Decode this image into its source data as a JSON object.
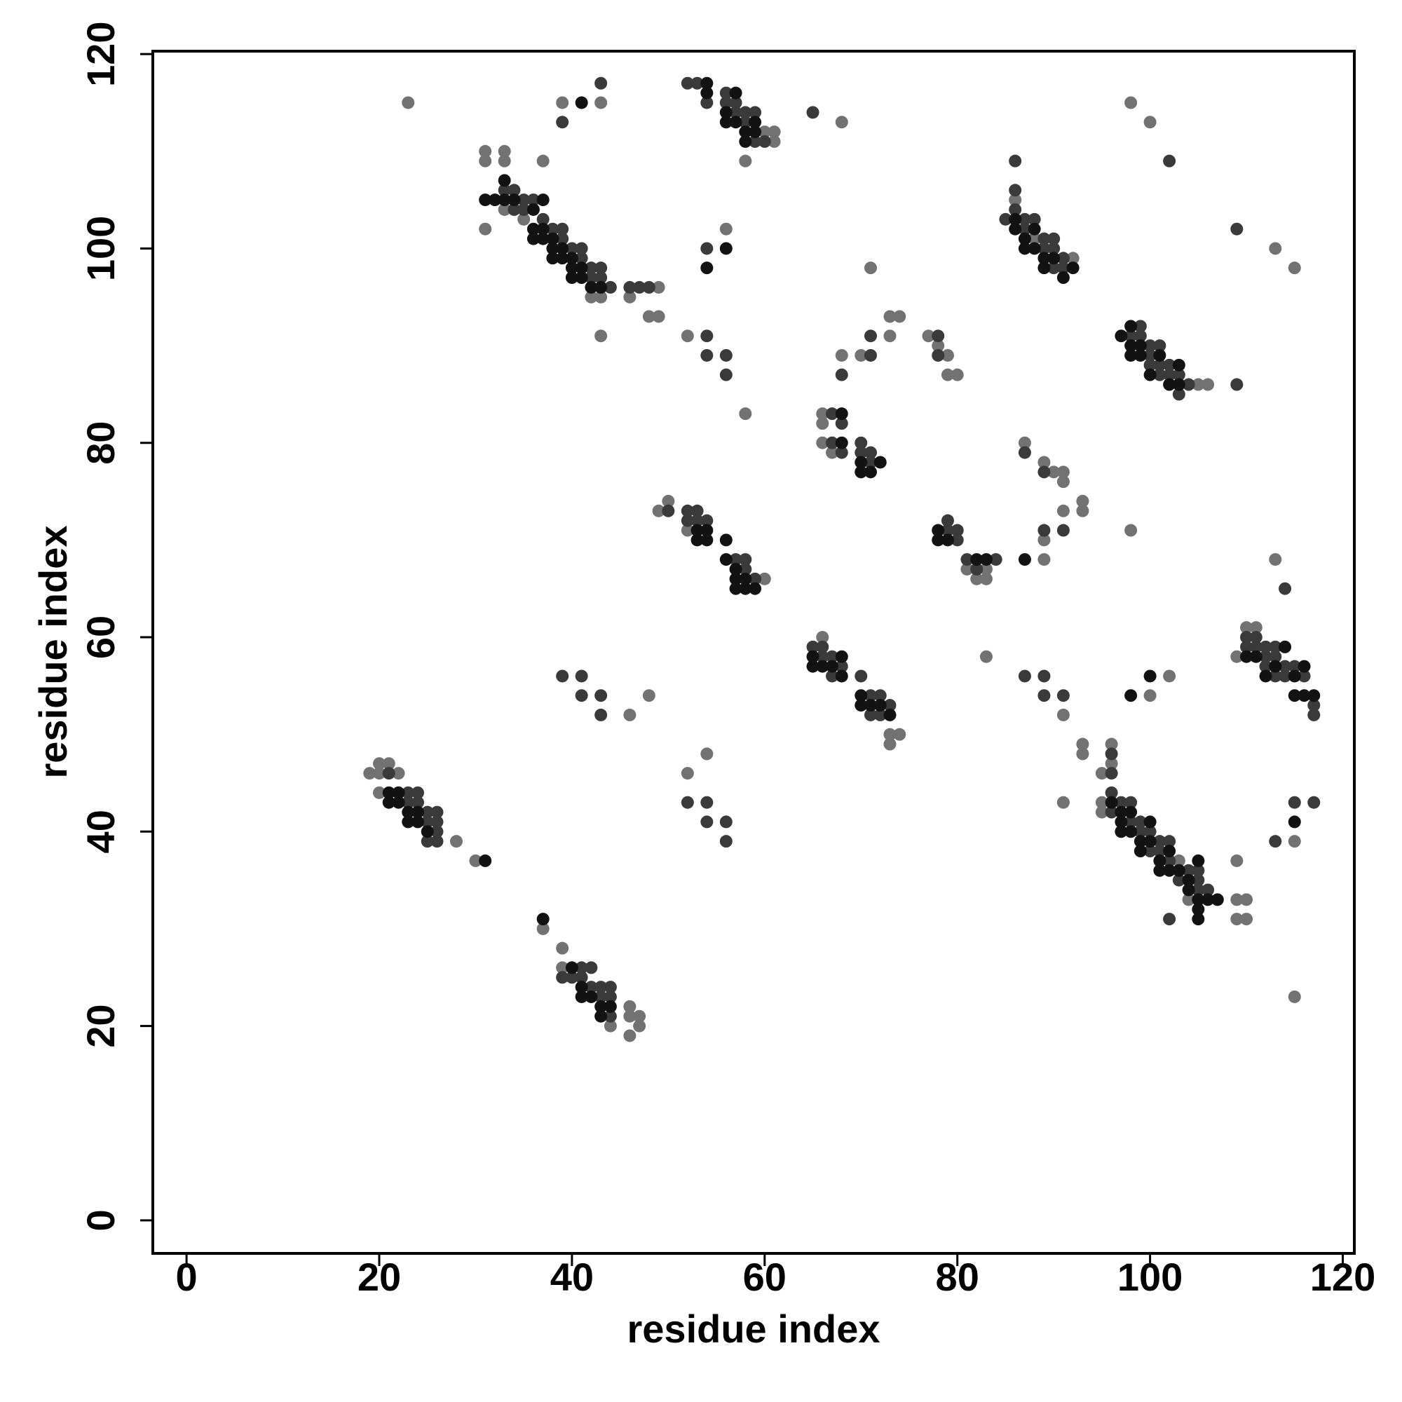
{
  "chart_data": {
    "type": "scatter",
    "xlabel": "residue index",
    "ylabel": "residue index",
    "xlim": [
      -3.5,
      121.2
    ],
    "ylim": [
      -3.4,
      120.3
    ],
    "xticks": [
      0,
      20,
      40,
      60,
      80,
      100,
      120
    ],
    "yticks": [
      0,
      20,
      40,
      60,
      80,
      100,
      120
    ],
    "series": [
      {
        "color": "#727272",
        "x": [
          23,
          39,
          20,
          21,
          19,
          20,
          22,
          20,
          28,
          30,
          37,
          39,
          46,
          46,
          47,
          47,
          44,
          46,
          39,
          31,
          31,
          33,
          33,
          37,
          31,
          33,
          35,
          42,
          43,
          46,
          49,
          48,
          49,
          43,
          43,
          60,
          61,
          61,
          58,
          68,
          56,
          52,
          58,
          49,
          50,
          52,
          60,
          66,
          73,
          74,
          73,
          66,
          66,
          66,
          67,
          68,
          70,
          73,
          74,
          73,
          71,
          77,
          78,
          79,
          80,
          79,
          81,
          82,
          83,
          83,
          83,
          48,
          46,
          54,
          52,
          87,
          89,
          90,
          91,
          91,
          91,
          93,
          93,
          89,
          89,
          98,
          91,
          93,
          93,
          91,
          95,
          96,
          96,
          95,
          95,
          100,
          102,
          109,
          109,
          110,
          109,
          110,
          103,
          104,
          98,
          100,
          113,
          115,
          113,
          115,
          115,
          110,
          111,
          109,
          106,
          105,
          88,
          86,
          92
        ],
        "values": [
          115,
          115,
          47,
          47,
          46,
          46,
          46,
          44,
          39,
          37,
          30,
          28,
          22,
          21,
          21,
          20,
          20,
          19,
          26,
          110,
          109,
          110,
          109,
          109,
          102,
          104,
          103,
          95,
          95,
          95,
          96,
          93,
          93,
          91,
          115,
          112,
          112,
          111,
          109,
          113,
          102,
          91,
          83,
          73,
          74,
          71,
          66,
          60,
          50,
          50,
          49,
          83,
          82,
          80,
          79,
          89,
          89,
          93,
          93,
          91,
          98,
          91,
          90,
          89,
          87,
          87,
          67,
          66,
          66,
          67,
          58,
          54,
          52,
          48,
          46,
          80,
          78,
          77,
          77,
          76,
          73,
          74,
          73,
          70,
          68,
          71,
          52,
          49,
          48,
          43,
          46,
          49,
          47,
          43,
          42,
          54,
          56,
          37,
          33,
          33,
          31,
          31,
          37,
          33,
          115,
          113,
          100,
          98,
          68,
          39,
          23,
          61,
          61,
          58,
          86,
          86,
          101,
          105,
          99
        ]
      },
      {
        "color": "#3a3a3a",
        "x": [
          21,
          23,
          23,
          24,
          24,
          25,
          25,
          25,
          26,
          26,
          26,
          26,
          39,
          40,
          41,
          41,
          42,
          42,
          43,
          43,
          44,
          44,
          44,
          47,
          48,
          46,
          44,
          33,
          34,
          34,
          35,
          35,
          36,
          37,
          38,
          39,
          39,
          40,
          41,
          41,
          42,
          42,
          43,
          43,
          39,
          43,
          52,
          53,
          54,
          56,
          56,
          57,
          57,
          58,
          58,
          59,
          59,
          60,
          65,
          54,
          54,
          54,
          56,
          56,
          50,
          52,
          52,
          53,
          53,
          54,
          57,
          58,
          58,
          59,
          65,
          66,
          66,
          67,
          67,
          68,
          70,
          71,
          71,
          72,
          72,
          73,
          67,
          67,
          68,
          68,
          70,
          70,
          71,
          71,
          68,
          71,
          71,
          78,
          78,
          80,
          79,
          79,
          80,
          81,
          82,
          84,
          86,
          85,
          86,
          86,
          87,
          87,
          88,
          89,
          89,
          90,
          90,
          90,
          91,
          91,
          98,
          99,
          99,
          100,
          100,
          100,
          101,
          101,
          101,
          102,
          102,
          103,
          103,
          104,
          109,
          102,
          109,
          87,
          89,
          91,
          89,
          87,
          89,
          89,
          91,
          96,
          96,
          96,
          96,
          97,
          98,
          98,
          99,
          99,
          100,
          100,
          101,
          101,
          102,
          102,
          103,
          104,
          105,
          105,
          105,
          106,
          102,
          110,
          110,
          111,
          111,
          112,
          112,
          112,
          113,
          113,
          113,
          114,
          114,
          115,
          116,
          117,
          117,
          114,
          113,
          115,
          117,
          41,
          39,
          41,
          43,
          43,
          52,
          54,
          54,
          56,
          56
        ],
        "values": [
          46,
          44,
          43,
          44,
          43,
          42,
          41,
          39,
          42,
          41,
          40,
          39,
          25,
          25,
          26,
          25,
          26,
          24,
          24,
          23,
          24,
          23,
          21,
          96,
          96,
          96,
          96,
          106,
          106,
          104,
          105,
          104,
          105,
          103,
          102,
          102,
          101,
          100,
          100,
          99,
          98,
          97,
          98,
          97,
          113,
          117,
          117,
          117,
          115,
          116,
          115,
          115,
          114,
          114,
          113,
          114,
          111,
          111,
          114,
          100,
          91,
          89,
          89,
          87,
          73,
          73,
          72,
          73,
          72,
          72,
          68,
          68,
          67,
          66,
          59,
          59,
          58,
          58,
          56,
          57,
          56,
          54,
          52,
          54,
          52,
          53,
          83,
          80,
          82,
          79,
          80,
          79,
          79,
          78,
          87,
          89,
          91,
          91,
          89,
          70,
          72,
          71,
          71,
          68,
          67,
          68,
          109,
          103,
          106,
          104,
          103,
          102,
          103,
          101,
          100,
          101,
          100,
          98,
          99,
          98,
          91,
          92,
          91,
          90,
          89,
          88,
          90,
          88,
          87,
          88,
          87,
          87,
          85,
          86,
          86,
          109,
          102,
          79,
          77,
          71,
          71,
          56,
          56,
          54,
          54,
          48,
          46,
          44,
          42,
          43,
          43,
          41,
          41,
          40,
          40,
          38,
          39,
          38,
          39,
          37,
          35,
          36,
          36,
          35,
          34,
          34,
          31,
          60,
          59,
          60,
          59,
          59,
          58,
          57,
          59,
          58,
          56,
          57,
          56,
          57,
          56,
          53,
          52,
          65,
          39,
          43,
          43,
          56,
          56,
          54,
          54,
          52,
          43,
          43,
          41,
          41,
          39
        ]
      },
      {
        "color": "#121212",
        "x": [
          21,
          21,
          22,
          22,
          23,
          23,
          24,
          24,
          25,
          31,
          37,
          40,
          41,
          41,
          42,
          43,
          43,
          44,
          31,
          32,
          33,
          33,
          34,
          36,
          36,
          36,
          37,
          37,
          37,
          38,
          38,
          38,
          39,
          39,
          40,
          40,
          40,
          41,
          41,
          42,
          43,
          41,
          54,
          54,
          56,
          56,
          57,
          57,
          58,
          58,
          59,
          59,
          54,
          56,
          53,
          54,
          54,
          53,
          56,
          56,
          57,
          57,
          57,
          58,
          58,
          59,
          65,
          65,
          66,
          67,
          68,
          68,
          70,
          70,
          71,
          72,
          73,
          68,
          68,
          70,
          70,
          71,
          72,
          78,
          79,
          78,
          82,
          83,
          86,
          86,
          87,
          87,
          88,
          88,
          89,
          89,
          90,
          91,
          92,
          97,
          98,
          98,
          98,
          99,
          99,
          100,
          101,
          102,
          103,
          103,
          87,
          98,
          100,
          96,
          97,
          97,
          97,
          98,
          98,
          99,
          99,
          100,
          100,
          101,
          101,
          102,
          102,
          103,
          104,
          104,
          105,
          105,
          105,
          105,
          106,
          107,
          110,
          111,
          112,
          113,
          114,
          115,
          115,
          116,
          116,
          117,
          115
        ],
        "values": [
          44,
          43,
          44,
          43,
          42,
          41,
          42,
          41,
          40,
          37,
          31,
          26,
          24,
          23,
          23,
          22,
          21,
          22,
          105,
          105,
          107,
          105,
          105,
          104,
          102,
          101,
          105,
          102,
          101,
          101,
          100,
          99,
          100,
          99,
          99,
          98,
          97,
          98,
          97,
          96,
          96,
          115,
          117,
          116,
          114,
          113,
          116,
          113,
          112,
          111,
          113,
          112,
          98,
          100,
          71,
          71,
          70,
          70,
          70,
          68,
          67,
          66,
          65,
          66,
          65,
          65,
          58,
          57,
          57,
          57,
          58,
          56,
          54,
          53,
          53,
          53,
          52,
          83,
          80,
          78,
          77,
          77,
          78,
          71,
          70,
          70,
          68,
          68,
          103,
          102,
          101,
          100,
          102,
          100,
          99,
          98,
          99,
          97,
          98,
          91,
          92,
          90,
          89,
          90,
          89,
          87,
          89,
          86,
          88,
          86,
          68,
          54,
          56,
          43,
          42,
          41,
          40,
          42,
          40,
          39,
          38,
          39,
          41,
          37,
          36,
          38,
          36,
          36,
          35,
          34,
          37,
          33,
          32,
          31,
          33,
          33,
          58,
          58,
          56,
          57,
          59,
          56,
          54,
          57,
          54,
          54,
          41
        ]
      }
    ]
  }
}
